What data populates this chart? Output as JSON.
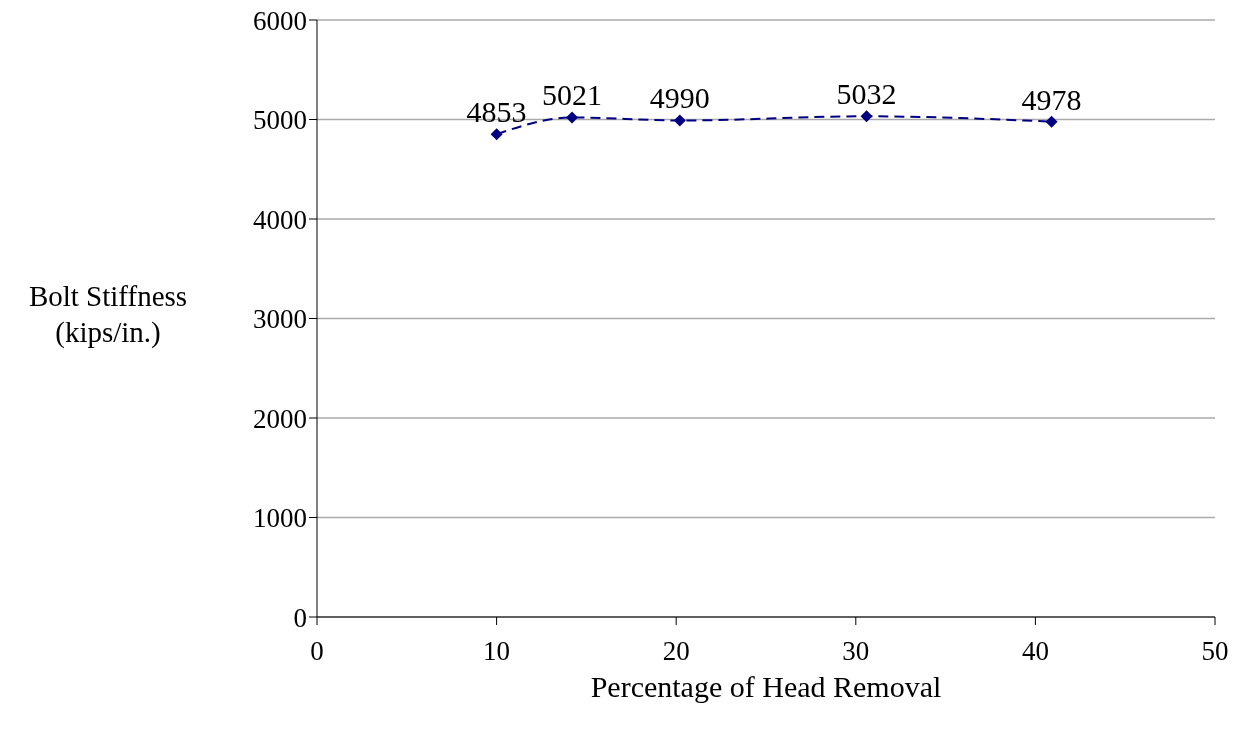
{
  "chart_data": {
    "type": "line",
    "xlabel": "Percentage of Head Removal",
    "ylabel": "Bolt Stiffness (kips/in.)",
    "x": [
      10,
      14.2,
      20.2,
      30.6,
      40.9
    ],
    "series": [
      {
        "color": "#000080",
        "values": [
          4853,
          5021,
          4990,
          5032,
          4978
        ]
      }
    ],
    "xlim": [
      0,
      50
    ],
    "xticks": [
      0,
      10,
      20,
      30,
      40,
      50
    ],
    "ylim": [
      0,
      6000
    ],
    "yticks": [
      0,
      1000,
      2000,
      3000,
      4000,
      5000,
      6000
    ],
    "grid": "y",
    "legend": false,
    "marker": "diamond",
    "line_style": "dashed",
    "data_labels": true
  }
}
